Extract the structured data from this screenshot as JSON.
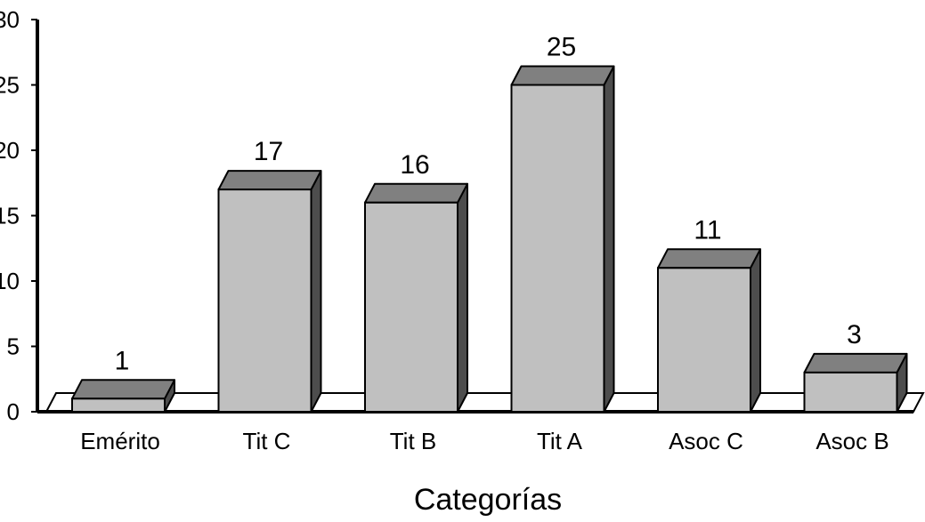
{
  "chart_data": {
    "type": "bar",
    "categories": [
      "Emérito",
      "Tit C",
      "Tit B",
      "Tit A",
      "Asoc C",
      "Asoc B"
    ],
    "values": [
      1,
      17,
      16,
      25,
      11,
      3
    ],
    "title": "",
    "xlabel": "Categorías",
    "ylabel": "",
    "ylim": [
      0,
      30
    ],
    "yticks": [
      0,
      5,
      10,
      15,
      20,
      25,
      30
    ],
    "grid": false,
    "legend": "none",
    "three_d": true,
    "colors": {
      "bar_front": "#c0c0c0",
      "bar_top": "#808080",
      "bar_side": "#4d4d4d",
      "outline": "#000000",
      "floor": "#ffffff"
    }
  }
}
